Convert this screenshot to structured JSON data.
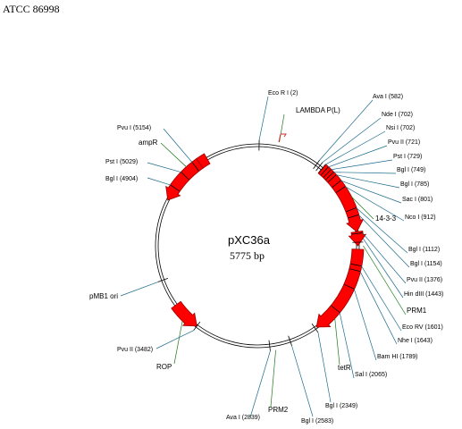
{
  "header": {
    "accession": "ATCC 86998"
  },
  "plasmid": {
    "name": "pXC36a",
    "size": "5775 bp"
  },
  "sites": [
    {
      "label": "Eco R I (2)"
    },
    {
      "label": "Ava I (582)"
    },
    {
      "label": "Nde I (702)"
    },
    {
      "label": "Nsi I (702)"
    },
    {
      "label": "Pvu II (721)"
    },
    {
      "label": "Pst I (729)"
    },
    {
      "label": "Bgl I (749)"
    },
    {
      "label": "Bgl I (785)"
    },
    {
      "label": "Sac I (801)"
    },
    {
      "label": "Nco I (912)"
    },
    {
      "label": "Bgl I (1112)"
    },
    {
      "label": "Bgl I (1154)"
    },
    {
      "label": "Pvu II (1376)"
    },
    {
      "label": "Hin dIII (1443)"
    },
    {
      "label": "Eco RV (1601)"
    },
    {
      "label": "Nhe I (1643)"
    },
    {
      "label": "Bam HI (1789)"
    },
    {
      "label": "Sal I (2065)"
    },
    {
      "label": "Bgl I (2349)"
    },
    {
      "label": "Bgl I (2583)"
    },
    {
      "label": "Ava I (2839)"
    },
    {
      "label": "Pvu II (3482)"
    },
    {
      "label": "Bgl I (4904)"
    },
    {
      "label": "Pst I (5029)"
    },
    {
      "label": "Pvu I (5154)"
    }
  ],
  "features": [
    {
      "label": "LAMBDA P(L)"
    },
    {
      "label": "14-3-3"
    },
    {
      "label": "PRM1"
    },
    {
      "label": "tetR"
    },
    {
      "label": "PRM2"
    },
    {
      "label": "ROP"
    },
    {
      "label": "pMB1 ori"
    },
    {
      "label": "ampR"
    }
  ],
  "colors": {
    "feature_fill": "#ff0000",
    "feature_stroke": "#990000",
    "site_line": "#1a6b8a",
    "feature_line": "#1a7a1a"
  }
}
